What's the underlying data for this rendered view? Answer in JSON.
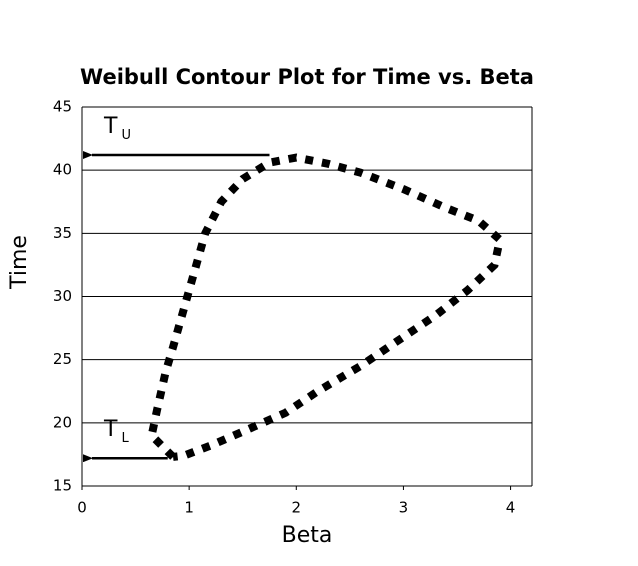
{
  "chart_data": {
    "type": "line",
    "title": "Weibull Contour Plot for Time vs. Beta",
    "x_label": "Beta",
    "y_label": "Time",
    "xlim": [
      0,
      4.2
    ],
    "ylim": [
      15,
      45
    ],
    "xticks": [
      0,
      1,
      2,
      3,
      4
    ],
    "yticks": [
      15,
      20,
      25,
      30,
      35,
      40,
      45
    ],
    "grid": true,
    "series": [
      {
        "color": "#000000",
        "x": [
          0.85,
          0.65,
          0.7,
          0.78,
          0.85,
          0.95,
          1.05,
          1.15,
          1.3,
          1.5,
          1.75,
          2.0,
          2.3,
          2.6,
          3.0,
          3.4,
          3.7,
          3.9,
          3.85,
          3.6,
          3.3,
          3.0,
          2.6,
          2.2,
          1.9,
          1.5,
          1.2,
          0.95,
          0.85
        ],
        "values": [
          17.3,
          19,
          21,
          24,
          26,
          29,
          32,
          35,
          37.5,
          39.3,
          40.6,
          41,
          40.5,
          39.8,
          38.5,
          37,
          36,
          34.5,
          32.5,
          30.5,
          28.5,
          26.8,
          24.5,
          22.5,
          20.8,
          19.3,
          18.2,
          17.4,
          17.3
        ]
      }
    ],
    "bounds": [
      {
        "label": "T",
        "subscript": "U",
        "value": 41.2,
        "x_from": 1.75
      },
      {
        "label": "T",
        "subscript": "L",
        "value": 17.2,
        "x_from": 0.8
      }
    ]
  }
}
